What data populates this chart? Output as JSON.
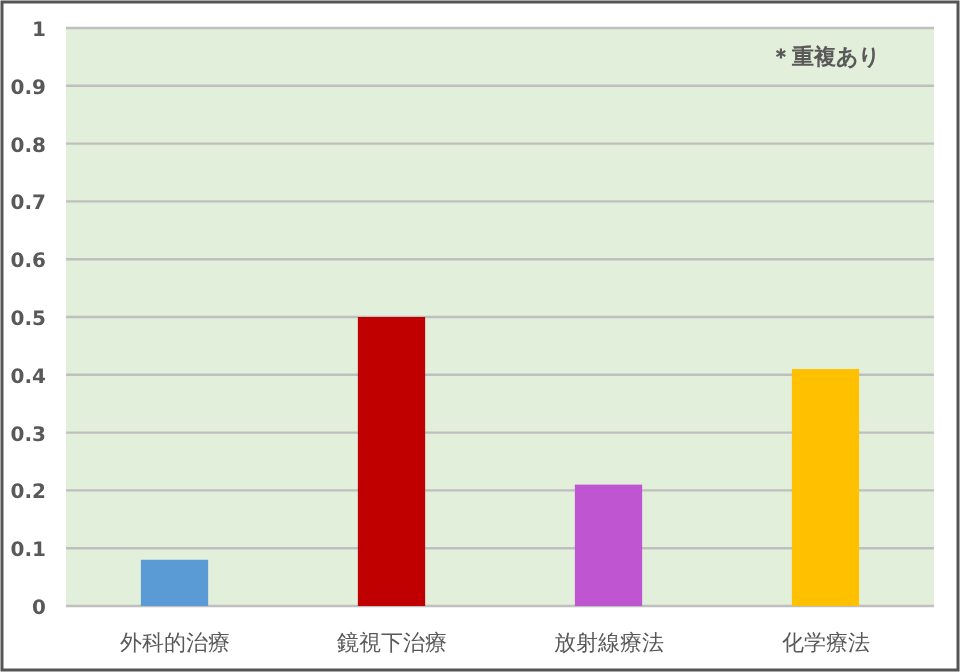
{
  "chart_data": {
    "type": "bar",
    "categories": [
      "外科的治療",
      "鏡視下治療",
      "放射線療法",
      "化学療法"
    ],
    "values": [
      0.08,
      0.5,
      0.21,
      0.41
    ],
    "colors": [
      "#5b9bd5",
      "#c00000",
      "#bf55d0",
      "#ffc000"
    ],
    "ylim": [
      0,
      1
    ],
    "yticks": [
      0,
      0.1,
      0.2,
      0.3,
      0.4,
      0.5,
      0.6,
      0.7,
      0.8,
      0.9,
      1
    ],
    "grid": "y",
    "annotations": [
      "＊重複あり"
    ]
  }
}
